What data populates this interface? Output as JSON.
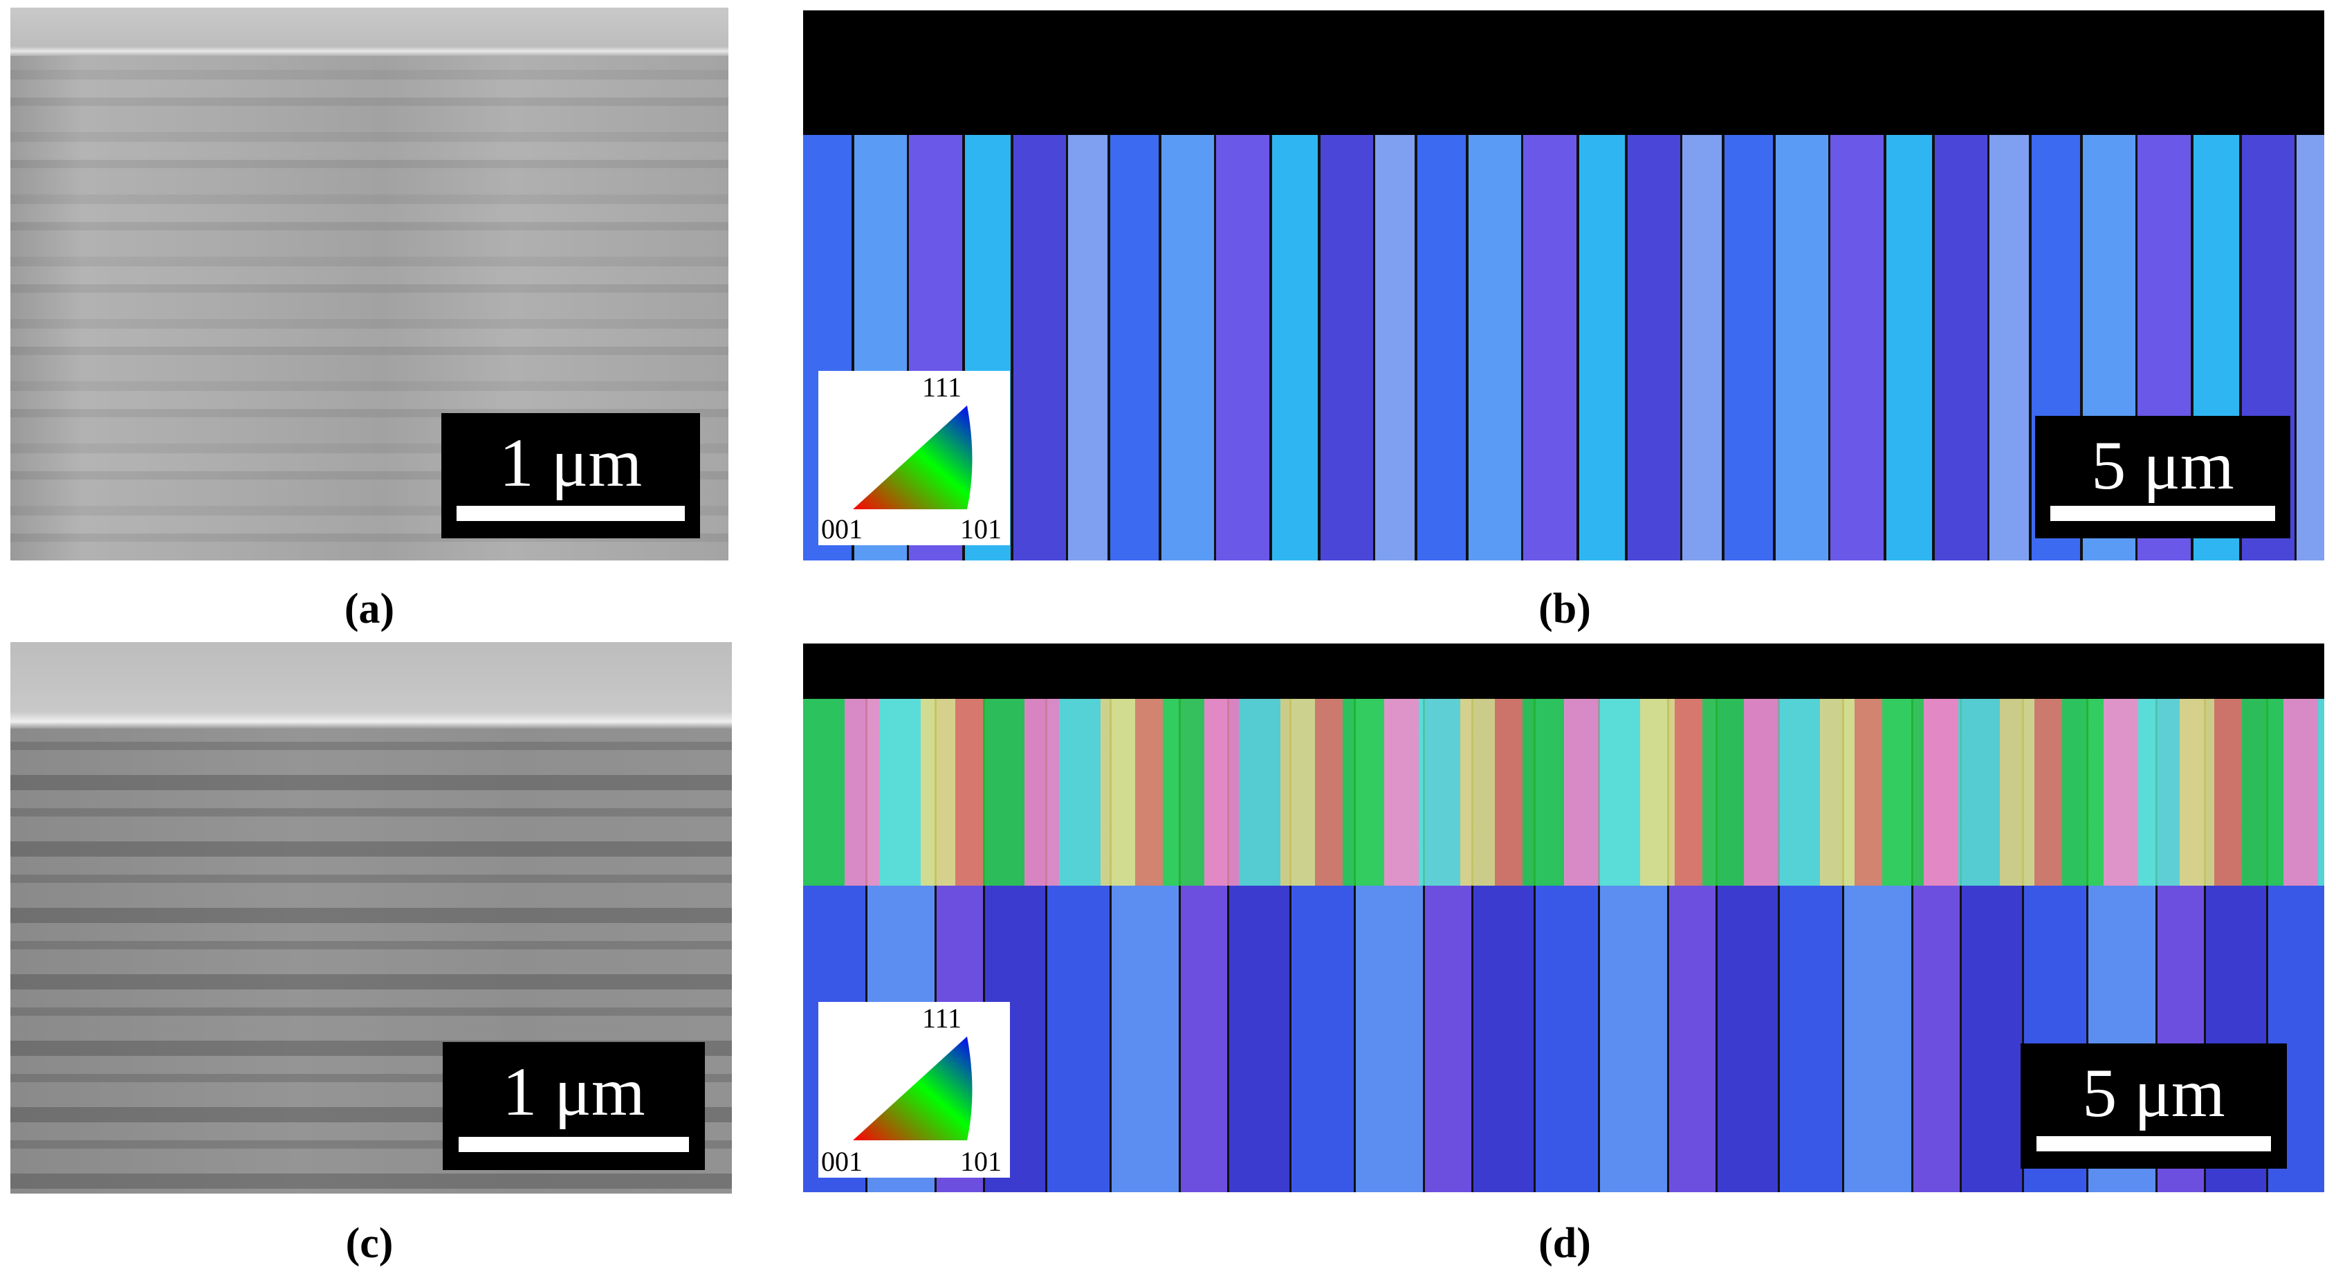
{
  "panels": [
    {
      "label": "(a)",
      "scale_bar": "1 μm"
    },
    {
      "label": "(b)",
      "scale_bar": "5 μm",
      "ipf_legend": {
        "top": "111",
        "bottom_left": "001",
        "bottom_right": "101"
      }
    },
    {
      "label": "(c)",
      "scale_bar": "1 μm"
    },
    {
      "label": "(d)",
      "scale_bar": "5 μm",
      "ipf_legend": {
        "top": "111",
        "bottom_left": "001",
        "bottom_right": "101"
      }
    }
  ]
}
